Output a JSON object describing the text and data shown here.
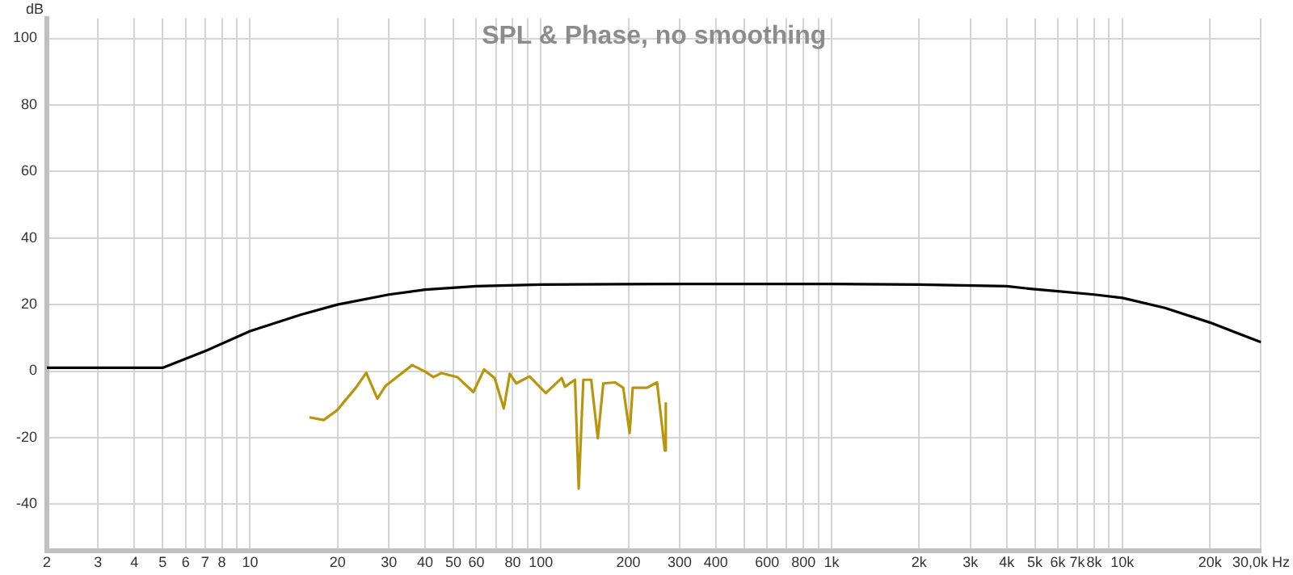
{
  "chart_data": {
    "type": "line",
    "title": "SPL & Phase, no smoothing",
    "ylabel": "dB",
    "log": "x",
    "grid": true,
    "marker": "none",
    "line_style": "solid",
    "legend": false,
    "xlim": [
      2,
      30000
    ],
    "ylim": [
      -54,
      106
    ],
    "xticks": [
      2,
      3,
      4,
      5,
      6,
      7,
      8,
      {
        "value": 9,
        "label": null
      },
      10,
      20,
      30,
      40,
      50,
      60,
      {
        "value": 70,
        "label": null
      },
      80,
      {
        "value": 90,
        "label": null
      },
      100,
      200,
      300,
      400,
      {
        "value": 500,
        "label": null
      },
      600,
      {
        "value": 700,
        "label": null
      },
      800,
      {
        "value": 900,
        "label": null
      },
      {
        "value": 1000,
        "label": "1k"
      },
      {
        "value": 2000,
        "label": "2k"
      },
      {
        "value": 3000,
        "label": "3k"
      },
      {
        "value": 4000,
        "label": "4k"
      },
      {
        "value": 5000,
        "label": "5k"
      },
      {
        "value": 6000,
        "label": "6k"
      },
      {
        "value": 7000,
        "label": "7k"
      },
      {
        "value": 8000,
        "label": "8k"
      },
      {
        "value": 9000,
        "label": null
      },
      {
        "value": 10000,
        "label": "10k"
      },
      {
        "value": 20000,
        "label": "20k"
      },
      {
        "value": 30000,
        "label": "30,0k Hz"
      }
    ],
    "yticks": [
      -40,
      -20,
      0,
      20,
      40,
      60,
      80,
      100
    ],
    "series": [
      {
        "color": "#000000",
        "x": [
          2,
          5,
          7,
          10,
          15,
          20,
          30,
          40,
          60,
          100,
          300,
          1000,
          2000,
          4000,
          5000,
          6000,
          8000,
          10000,
          14000,
          20000,
          30000
        ],
        "values": [
          1,
          1,
          6,
          12,
          17,
          20,
          23,
          24.5,
          25.5,
          26,
          26.2,
          26.2,
          26,
          25.5,
          24.6,
          24,
          23,
          22,
          19,
          14.6,
          8.7
        ]
      },
      {
        "color": "#b8960c",
        "x": [
          16,
          17.9,
          19.9,
          23.1,
          25.1,
          27.4,
          29.2,
          36.1,
          40.1,
          42.7,
          45.5,
          51.6,
          58.6,
          63.8,
          69.4,
          74.6,
          78.2,
          82.3,
          91.4,
          104,
          118,
          121,
          131,
          135,
          140,
          149,
          157,
          164,
          180,
          192,
          202,
          207,
          232,
          251,
          267,
          269
        ],
        "values": [
          -13.9,
          -14.7,
          -11.8,
          -5,
          -0.5,
          -8.3,
          -4.5,
          1.8,
          -0.2,
          -1.8,
          -0.6,
          -1.8,
          -6.3,
          0.5,
          -2.1,
          -11.2,
          -0.8,
          -3.7,
          -1.6,
          -6.6,
          -2.1,
          -4.7,
          -2.6,
          -35.3,
          -2.6,
          -2.6,
          -20.2,
          -3.7,
          -3.4,
          -5,
          -18.6,
          -5,
          -5,
          -3.4,
          -23.9,
          -9.4
        ]
      }
    ]
  }
}
